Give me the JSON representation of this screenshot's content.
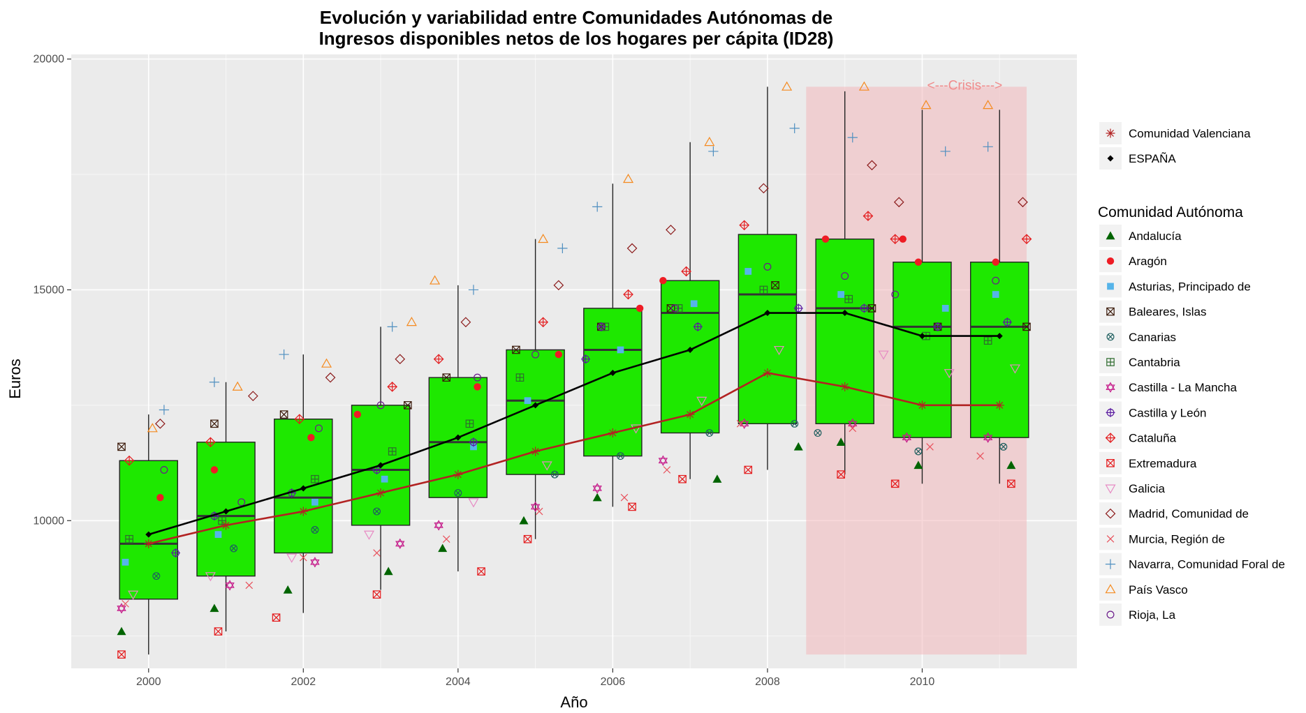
{
  "chart_data": {
    "type": "boxplot",
    "title_line1": "Evolución y variabilidad entre Comunidades Autónomas de",
    "title_line2": "Ingresos disponibles netos de los hogares per cápita (ID28)",
    "xlabel": "Año",
    "ylabel": "Euros",
    "xlim": [
      1999,
      2012
    ],
    "ylim": [
      6800,
      20100
    ],
    "x_ticks": [
      2000,
      2002,
      2004,
      2006,
      2008,
      2010
    ],
    "y_ticks": [
      10000,
      15000,
      20000
    ],
    "grid": true,
    "background": "#ebebeb",
    "box_fill": "#1ee800",
    "crisis": {
      "label": "<---Crisis--->",
      "x_start": 2008.5,
      "x_end": 2011.35,
      "color": "#f3b8bb"
    },
    "boxes": [
      {
        "year": 2000,
        "min": 7100,
        "q1": 8300,
        "median": 9500,
        "q3": 11300,
        "max": 12300
      },
      {
        "year": 2001,
        "min": 7600,
        "q1": 8800,
        "median": 10100,
        "q3": 11700,
        "max": 13000
      },
      {
        "year": 2002,
        "min": 8000,
        "q1": 9300,
        "median": 10500,
        "q3": 12200,
        "max": 13600
      },
      {
        "year": 2003,
        "min": 8500,
        "q1": 9900,
        "median": 11100,
        "q3": 12500,
        "max": 14200
      },
      {
        "year": 2004,
        "min": 8900,
        "q1": 10500,
        "median": 11700,
        "q3": 13100,
        "max": 15100
      },
      {
        "year": 2005,
        "min": 9600,
        "q1": 11000,
        "median": 12600,
        "q3": 13700,
        "max": 16100
      },
      {
        "year": 2006,
        "min": 10300,
        "q1": 11400,
        "median": 13700,
        "q3": 14600,
        "max": 17300
      },
      {
        "year": 2007,
        "min": 10900,
        "q1": 11900,
        "median": 14500,
        "q3": 15200,
        "max": 18200
      },
      {
        "year": 2008,
        "min": 11100,
        "q1": 12100,
        "median": 14900,
        "q3": 16200,
        "max": 19400
      },
      {
        "year": 2009,
        "min": 11000,
        "q1": 12100,
        "median": 14600,
        "q3": 16100,
        "max": 19300
      },
      {
        "year": 2010,
        "min": 10800,
        "q1": 11800,
        "median": 14200,
        "q3": 15600,
        "max": 18900
      },
      {
        "year": 2011,
        "min": 10800,
        "q1": 11800,
        "median": 14200,
        "q3": 15600,
        "max": 18900
      }
    ],
    "espana": {
      "name": "ESPAÑA",
      "color": "#000000",
      "x": [
        2000,
        2001,
        2002,
        2003,
        2004,
        2005,
        2006,
        2007,
        2008,
        2009,
        2010,
        2011
      ],
      "values": [
        9700,
        10200,
        10700,
        11200,
        11800,
        12500,
        13200,
        13700,
        14500,
        14500,
        14000,
        14000
      ]
    },
    "valenciana": {
      "name": "Comunidad Valenciana",
      "color": "#b22222",
      "x": [
        2000,
        2001,
        2002,
        2003,
        2004,
        2005,
        2006,
        2007,
        2008,
        2009,
        2010,
        2011
      ],
      "values": [
        9500,
        9900,
        10200,
        10600,
        11000,
        11500,
        11900,
        12300,
        13200,
        12900,
        12500,
        12500
      ]
    },
    "series": [
      {
        "name": "Andalucía",
        "color": "#006400",
        "shape": "triangle-filled",
        "x": [
          1999.65,
          2000.85,
          2001.8,
          2003.1,
          2003.8,
          2004.85,
          2005.8,
          2007.35,
          2008.4,
          2008.95,
          2009.95,
          2011.15
        ],
        "values": [
          7600,
          8100,
          8500,
          8900,
          9400,
          10000,
          10500,
          10900,
          11600,
          11700,
          11200,
          11200
        ]
      },
      {
        "name": "Aragón",
        "color": "#ee1c24",
        "shape": "circle-filled",
        "x": [
          2000.15,
          2000.85,
          2002.1,
          2002.7,
          2004.25,
          2005.3,
          2006.35,
          2006.65,
          2008.75,
          2009.75,
          2009.95,
          2010.95
        ],
        "values": [
          10500,
          11100,
          11800,
          12300,
          12900,
          13600,
          14600,
          15200,
          16100,
          16100,
          15600,
          15600
        ]
      },
      {
        "name": "Asturias, Principado de",
        "color": "#56b4e9",
        "shape": "square-filled",
        "x": [
          1999.7,
          2000.9,
          2002.15,
          2003.05,
          2004.2,
          2004.9,
          2006.1,
          2007.05,
          2007.75,
          2008.95,
          2010.3,
          2010.95
        ],
        "values": [
          9100,
          9700,
          10400,
          10900,
          11600,
          12600,
          13700,
          14700,
          15400,
          14900,
          14600,
          14900
        ]
      },
      {
        "name": "Baleares, Islas",
        "color": "#3b1a0a",
        "shape": "square-x",
        "x": [
          1999.65,
          2000.85,
          2001.75,
          2003.35,
          2003.85,
          2004.75,
          2005.85,
          2006.75,
          2008.1,
          2009.35,
          2010.2,
          2011.35
        ],
        "values": [
          11600,
          12100,
          12300,
          12500,
          13100,
          13700,
          14200,
          14600,
          15100,
          14600,
          14200,
          14200
        ]
      },
      {
        "name": "Canarias",
        "color": "#1f5f5f",
        "shape": "circle-x",
        "x": [
          2000.1,
          2001.1,
          2002.15,
          2002.95,
          2004.0,
          2005.25,
          2006.1,
          2007.25,
          2008.35,
          2008.65,
          2009.95,
          2011.05
        ],
        "values": [
          8800,
          9400,
          9800,
          10200,
          10600,
          11000,
          11400,
          11900,
          12100,
          11900,
          11500,
          11600
        ]
      },
      {
        "name": "Cantabria",
        "color": "#2e6b2e",
        "shape": "square-plus",
        "x": [
          1999.75,
          2000.95,
          2002.15,
          2003.15,
          2004.15,
          2004.8,
          2005.9,
          2006.85,
          2007.95,
          2009.05,
          2010.05,
          2010.85
        ],
        "values": [
          9600,
          10000,
          10900,
          11500,
          12100,
          13100,
          14200,
          14600,
          15000,
          14800,
          14000,
          13900
        ]
      },
      {
        "name": "Castilla - La Mancha",
        "color": "#c51b8a",
        "shape": "star",
        "x": [
          1999.65,
          2001.05,
          2002.15,
          2003.25,
          2003.75,
          2005.0,
          2005.8,
          2006.65,
          2007.7,
          2009.1,
          2009.8,
          2010.85
        ],
        "values": [
          8100,
          8600,
          9100,
          9500,
          9900,
          10300,
          10700,
          11300,
          12100,
          12100,
          11800,
          11800
        ]
      },
      {
        "name": "Castilla y León",
        "color": "#5a1aa0",
        "shape": "circle-plus",
        "x": [
          2000.35,
          2000.85,
          2001.85,
          2002.95,
          2004.2,
          2005.65,
          2005.85,
          2007.1,
          2008.4,
          2009.25,
          2010.2,
          2011.1
        ],
        "values": [
          9300,
          10100,
          10600,
          11100,
          11700,
          13500,
          14200,
          14200,
          14600,
          14600,
          14200,
          14300
        ]
      },
      {
        "name": "Cataluña",
        "color": "#e31a1c",
        "shape": "diamond-plus",
        "x": [
          1999.75,
          2000.8,
          2001.95,
          2003.15,
          2003.75,
          2005.1,
          2006.2,
          2006.95,
          2007.7,
          2009.3,
          2009.65,
          2011.35
        ],
        "values": [
          11300,
          11700,
          12200,
          12900,
          13500,
          14300,
          14900,
          15400,
          16400,
          16600,
          16100,
          16100
        ]
      },
      {
        "name": "Extremadura",
        "color": "#e41a1c",
        "shape": "square-x",
        "x": [
          1999.65,
          2000.9,
          2001.65,
          2002.95,
          2004.3,
          2004.9,
          2006.25,
          2006.9,
          2007.75,
          2008.95,
          2009.65,
          2011.15
        ],
        "values": [
          7100,
          7600,
          7900,
          8400,
          8900,
          9600,
          10300,
          10900,
          11100,
          11000,
          10800,
          10800
        ]
      },
      {
        "name": "Galicia",
        "color": "#e78ac3",
        "shape": "triangle-down",
        "x": [
          1999.8,
          2000.8,
          2001.85,
          2002.85,
          2004.2,
          2005.15,
          2006.3,
          2007.15,
          2008.15,
          2009.5,
          2010.35,
          2011.2
        ],
        "values": [
          8400,
          8800,
          9200,
          9700,
          10400,
          11200,
          12000,
          12600,
          13700,
          13600,
          13200,
          13300
        ]
      },
      {
        "name": "Madrid, Comunidad de",
        "color": "#8b1a1a",
        "shape": "diamond",
        "x": [
          2000.15,
          2001.35,
          2002.35,
          2003.25,
          2004.1,
          2005.3,
          2006.25,
          2006.75,
          2007.95,
          2009.35,
          2009.7,
          2011.3
        ],
        "values": [
          12100,
          12700,
          13100,
          13500,
          14300,
          15100,
          15900,
          16300,
          17200,
          17700,
          16900,
          16900
        ]
      },
      {
        "name": "Murcia, Región de",
        "color": "#e8505b",
        "shape": "x",
        "x": [
          1999.7,
          2001.3,
          2002.0,
          2002.95,
          2003.85,
          2005.05,
          2006.15,
          2006.7,
          2007.65,
          2009.1,
          2010.1,
          2010.75
        ],
        "values": [
          8200,
          8600,
          9200,
          9300,
          9600,
          10200,
          10500,
          11100,
          12100,
          12000,
          11600,
          11400
        ]
      },
      {
        "name": "Navarra, Comunidad Foral de",
        "color": "#4f8fc0",
        "shape": "plus",
        "x": [
          2000.2,
          2000.85,
          2001.75,
          2003.15,
          2004.2,
          2005.35,
          2005.8,
          2007.3,
          2008.35,
          2009.1,
          2010.3,
          2010.85
        ],
        "values": [
          12400,
          13000,
          13600,
          14200,
          15000,
          15900,
          16800,
          18000,
          18500,
          18300,
          18000,
          18100
        ]
      },
      {
        "name": "País Vasco",
        "color": "#f58a1f",
        "shape": "triangle",
        "x": [
          2000.05,
          2001.15,
          2002.3,
          2003.4,
          2003.7,
          2005.1,
          2006.2,
          2007.25,
          2008.25,
          2009.25,
          2010.05,
          2010.85
        ],
        "values": [
          12000,
          12900,
          13400,
          14300,
          15200,
          16100,
          17400,
          18200,
          19400,
          19400,
          19000,
          19000
        ]
      },
      {
        "name": "Rioja, La",
        "color": "#6a1a8a",
        "shape": "circle",
        "x": [
          2000.2,
          2001.2,
          2002.2,
          2003.0,
          2004.25,
          2005.0,
          2005.85,
          2006.8,
          2008.0,
          2009.0,
          2009.65,
          2010.95
        ],
        "values": [
          11100,
          10400,
          12000,
          12500,
          13100,
          13600,
          14200,
          14600,
          15500,
          15300,
          14900,
          15200
        ]
      }
    ],
    "legend_top": [
      "Comunidad Valenciana",
      "ESPAÑA"
    ],
    "legend_title": "Comunidad Autónoma"
  }
}
